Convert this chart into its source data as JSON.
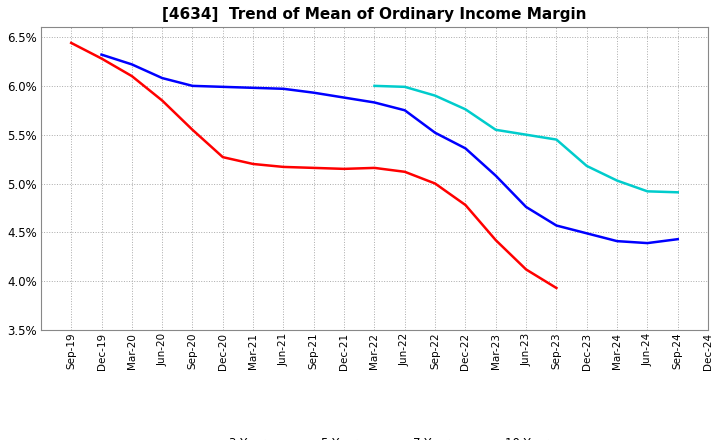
{
  "title": "[4634]  Trend of Mean of Ordinary Income Margin",
  "x_labels": [
    "Sep-19",
    "Dec-19",
    "Mar-20",
    "Jun-20",
    "Sep-20",
    "Dec-20",
    "Mar-21",
    "Jun-21",
    "Sep-21",
    "Dec-21",
    "Mar-22",
    "Jun-22",
    "Sep-22",
    "Dec-22",
    "Mar-23",
    "Jun-23",
    "Sep-23",
    "Dec-23",
    "Mar-24",
    "Jun-24",
    "Sep-24",
    "Dec-24"
  ],
  "y3": [
    0.0644,
    0.0628,
    0.061,
    0.0585,
    0.0555,
    0.0527,
    0.052,
    0.0517,
    0.0516,
    0.0515,
    0.0516,
    0.0512,
    0.05,
    0.0478,
    0.0442,
    0.0412,
    0.0393,
    null,
    null,
    null,
    null,
    null
  ],
  "y5": [
    null,
    0.0632,
    0.0622,
    0.0608,
    0.06,
    0.0599,
    0.0598,
    0.0597,
    0.0593,
    0.0588,
    0.0583,
    0.0575,
    0.0552,
    0.0536,
    0.0508,
    0.0476,
    0.0457,
    0.0449,
    0.0441,
    0.0439,
    0.0443,
    null
  ],
  "y7": [
    null,
    null,
    null,
    null,
    null,
    null,
    null,
    null,
    null,
    null,
    0.06,
    0.0599,
    0.059,
    0.0576,
    0.0555,
    0.055,
    0.0545,
    0.0518,
    0.0503,
    0.0492,
    0.0491,
    null
  ],
  "colors": {
    "3 Years": "#FF0000",
    "5 Years": "#0000FF",
    "7 Years": "#00CCCC",
    "10 Years": "#008000"
  },
  "ylim": [
    0.035,
    0.066
  ],
  "yticks": [
    0.035,
    0.04,
    0.045,
    0.05,
    0.055,
    0.06,
    0.065
  ],
  "background_color": "#FFFFFF",
  "grid_color": "#AAAAAA",
  "title_fontsize": 11
}
